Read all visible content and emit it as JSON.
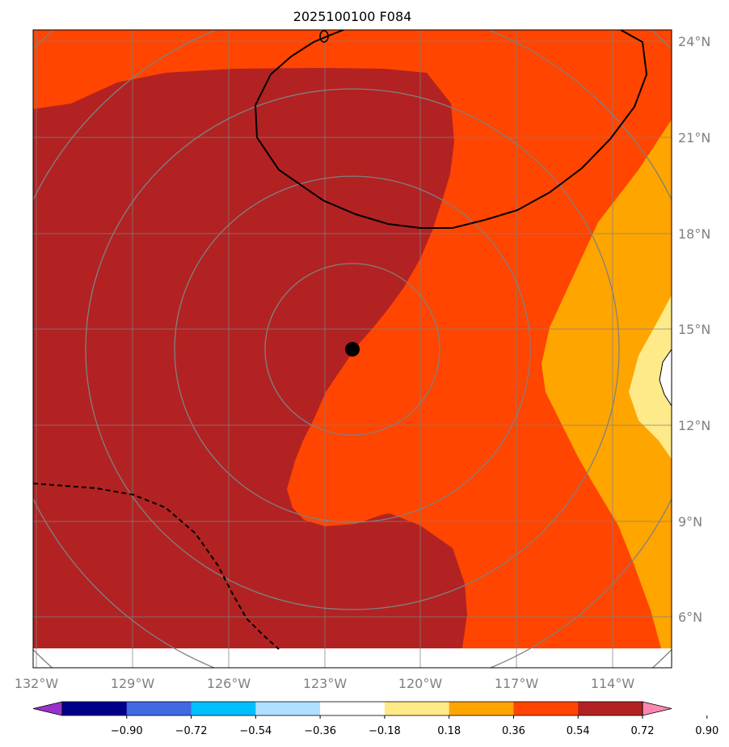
{
  "title": "2025100100 F084",
  "lon_labels": [
    "132°W",
    "129°W",
    "126°W",
    "123°W",
    "120°W",
    "117°W",
    "114°W"
  ],
  "lat_labels": [
    "24°N",
    "21°N",
    "18°N",
    "15°N",
    "12°N",
    "9°N",
    "6°N"
  ],
  "colorbar": {
    "tick_labels": [
      "−0.90",
      "−0.72",
      "−0.54",
      "−0.36",
      "−0.18",
      "0.18",
      "0.36",
      "0.54",
      "0.72",
      "0.90"
    ],
    "colors": [
      "#9932cc",
      "#00008b",
      "#4169e1",
      "#00bfff",
      "#b0e0ff",
      "#ffffff",
      "#ffea8a",
      "#ffa500",
      "#ff4500",
      "#b22222",
      "#ff88b0"
    ]
  },
  "fill_colors": {
    "dark_red": "#b22222",
    "orange_red": "#ff4500",
    "orange": "#ffa500",
    "light_yellow": "#ffea8a"
  },
  "storm_center_marker": "black-dot"
}
